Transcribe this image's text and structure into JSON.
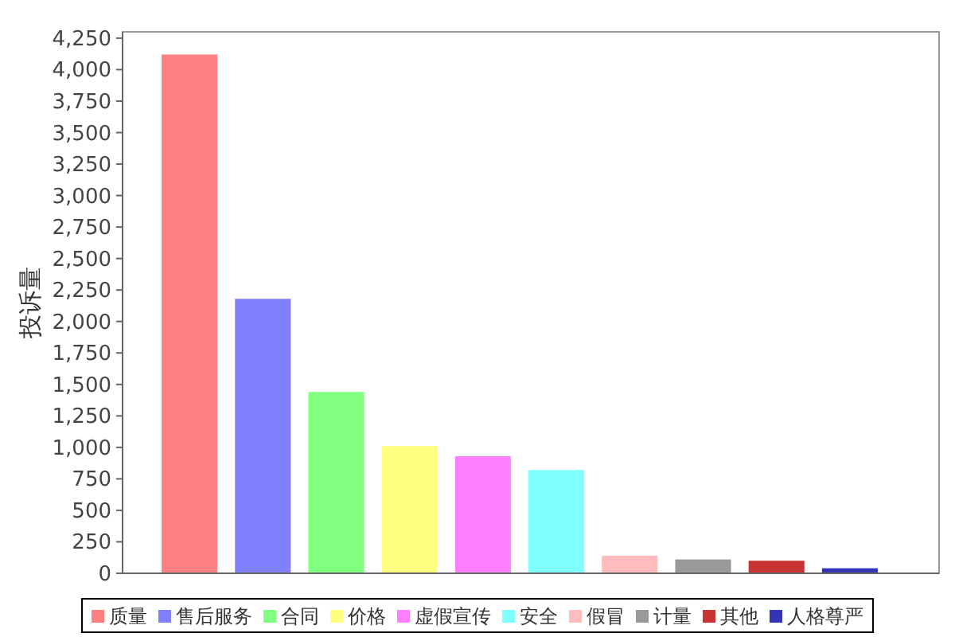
{
  "chart_data": {
    "type": "bar",
    "ylabel": "投诉量",
    "categories": [
      null,
      null,
      null,
      null,
      null,
      null,
      null,
      null,
      null,
      null
    ],
    "stacked": true,
    "series": [
      {
        "name": "质量",
        "color": "#ff8080",
        "values": [
          4120,
          null,
          null,
          null,
          null,
          null,
          null,
          null,
          null,
          null
        ]
      },
      {
        "name": "售后服务",
        "color": "#8080ff",
        "values": [
          null,
          2180,
          null,
          null,
          null,
          null,
          null,
          null,
          null,
          null
        ]
      },
      {
        "name": "合同",
        "color": "#80ff80",
        "values": [
          null,
          null,
          1440,
          null,
          null,
          null,
          null,
          null,
          null,
          null
        ]
      },
      {
        "name": "价格",
        "color": "#ffff80",
        "values": [
          null,
          null,
          null,
          1010,
          null,
          null,
          null,
          null,
          null,
          null
        ]
      },
      {
        "name": "虚假宣传",
        "color": "#ff80ff",
        "values": [
          null,
          null,
          null,
          null,
          930,
          null,
          null,
          null,
          null,
          null
        ]
      },
      {
        "name": "安全",
        "color": "#80ffff",
        "values": [
          null,
          null,
          null,
          null,
          null,
          820,
          null,
          null,
          null,
          null
        ]
      },
      {
        "name": "假冒",
        "color": "#ffbcbc",
        "values": [
          null,
          null,
          null,
          null,
          null,
          null,
          140,
          null,
          null,
          null
        ]
      },
      {
        "name": "计量",
        "color": "#999999",
        "values": [
          null,
          null,
          null,
          null,
          null,
          null,
          null,
          110,
          null,
          null
        ]
      },
      {
        "name": "其他",
        "color": "#c83434",
        "values": [
          null,
          null,
          null,
          null,
          null,
          null,
          null,
          null,
          100,
          null
        ]
      },
      {
        "name": "人格尊严",
        "color": "#3434b4",
        "values": [
          null,
          null,
          null,
          null,
          null,
          null,
          null,
          null,
          null,
          40
        ]
      }
    ],
    "ylim": [
      0,
      4300
    ],
    "yticks": [
      0,
      250,
      500,
      750,
      {
        "value": 1000,
        "label": "1,000"
      },
      {
        "value": 1250,
        "label": "1,250"
      },
      {
        "value": 1500,
        "label": "1,500"
      },
      {
        "value": 1750,
        "label": "1,750"
      },
      {
        "value": 2000,
        "label": "2,000"
      },
      {
        "value": 2250,
        "label": "2,250"
      },
      {
        "value": 2500,
        "label": "2,500"
      },
      {
        "value": 2750,
        "label": "2,750"
      },
      {
        "value": 3000,
        "label": "3,000"
      },
      {
        "value": 3250,
        "label": "3,250"
      },
      {
        "value": 3500,
        "label": "3,500"
      },
      {
        "value": 3750,
        "label": "3,750"
      },
      {
        "value": 4000,
        "label": "4,000"
      },
      {
        "value": 4250,
        "label": "4,250"
      }
    ],
    "legend": "bottom",
    "tick_labels": "y",
    "grid": false
  }
}
